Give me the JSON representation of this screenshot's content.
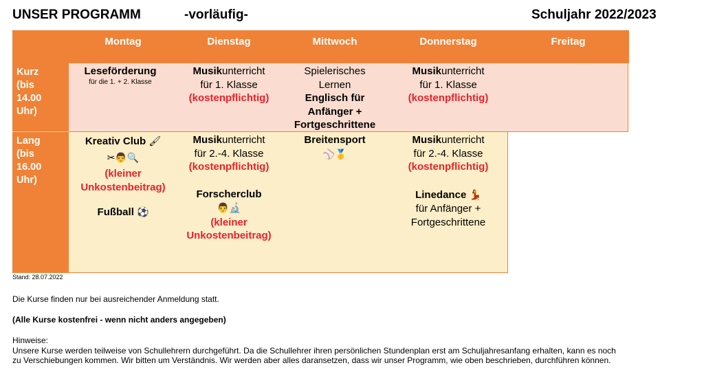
{
  "header": {
    "title": "UNSER PROGRAMM",
    "status": "-vorläufig-",
    "school_year": "Schuljahr 2022/2023"
  },
  "days": [
    "Montag",
    "Dienstag",
    "Mittwoch",
    "Donnerstag",
    "Freitag"
  ],
  "rows": {
    "kurz": {
      "label": [
        "Kurz",
        "(bis",
        "14.00",
        "Uhr)"
      ]
    },
    "lang": {
      "label": [
        "Lang",
        "(bis",
        "16.00",
        "Uhr)"
      ]
    }
  },
  "kurz": {
    "montag": {
      "title": "Leseförderung",
      "note": "für die 1. + 2. Klasse"
    },
    "dienstag": {
      "title_bold": "Musik",
      "title_rest": "unterricht",
      "class": "für 1. Klasse",
      "cost": "(kostenpflichtig)"
    },
    "mittwoch": {
      "line1": "Spielerisches",
      "line2": "Lernen",
      "bold1": "Englisch für",
      "bold2": "Anfänger +",
      "bold3": "Fortgeschrittene"
    },
    "donnerstag": {
      "title_bold": "Musik",
      "title_rest": "unterricht",
      "class": "für 1. Klasse",
      "cost": "(kostenpflichtig)"
    }
  },
  "lang": {
    "montag": {
      "title": "Kreativ Club",
      "title_icon": "🖌",
      "icons": "✂👨🔍",
      "cost1": "(kleiner",
      "cost2": "Unkostenbeitrag)",
      "sport": "Fußball",
      "sport_icon": "⚽"
    },
    "dienstag": {
      "title_bold": "Musik",
      "title_rest": "unterricht",
      "class": "für 2.-4. Klasse",
      "cost": "(kostenpflichtig)",
      "club": "Forscherclub",
      "club_icons": "👨🔬",
      "cost1": "(kleiner",
      "cost2": "Unkostenbeitrag)"
    },
    "mittwoch": {
      "title": "Breitensport",
      "icons": "⚾🥇"
    },
    "donnerstag": {
      "title_bold": "Musik",
      "title_rest": "unterricht",
      "class": "für 2.-4. Klasse",
      "cost": "(kostenpflichtig)",
      "dance": "Linedance",
      "dance_icon": "💃",
      "dance_l1": "für Anfänger +",
      "dance_l2": "Fortgeschrittene"
    }
  },
  "footer": {
    "stand": "Stand: 28.07.2022",
    "note1": "Die Kurse finden nur bei ausreichender Anmeldung statt.",
    "note2": "(Alle Kurse kostenfrei - wenn nicht anders angegeben)",
    "hinweise_label": "Hinweise:",
    "hinweise_line1": "Unsere Kurse werden teilweise von Schullehrern durchgeführt. Da die Schullehrer ihren persönlichen Stundenplan erst am Schuljahresanfang erhalten, kann es noch",
    "hinweise_line2": "zu Verschiebungen kommen. Wir bitten um Verständnis. Wir werden aber alles daransetzen, dass wir unser Programm, wie oben beschrieben, durchführen können."
  },
  "colors": {
    "orange": "#EF8236",
    "kurz_bg": "#FADDD0",
    "lang_bg": "#FCEEC8",
    "red": "#E8212B"
  }
}
